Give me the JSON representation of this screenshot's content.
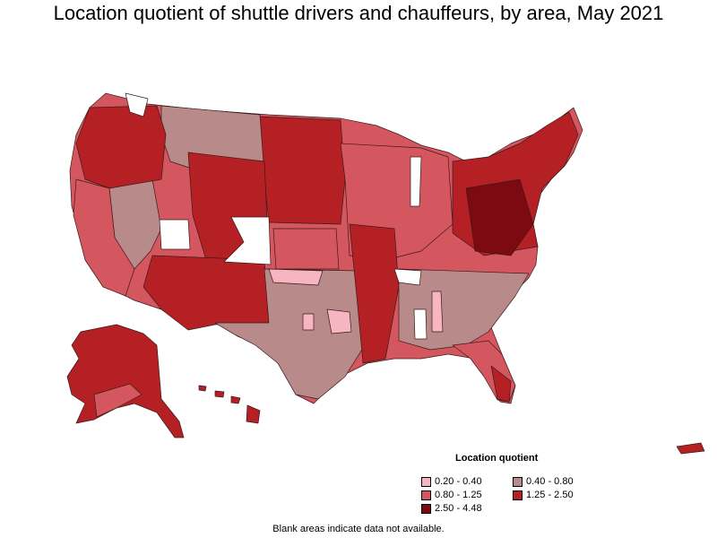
{
  "title": "Location quotient of shuttle drivers and chauffeurs, by area, May 2021",
  "legend": {
    "title": "Location quotient",
    "items": [
      {
        "label": "0.20 - 0.40",
        "color": "#f6b5c0"
      },
      {
        "label": "0.40 - 0.80",
        "color": "#b98a8a"
      },
      {
        "label": "0.80 - 1.25",
        "color": "#d4575f"
      },
      {
        "label": "1.25 - 2.50",
        "color": "#b52025"
      },
      {
        "label": "2.50 - 4.48",
        "color": "#7d0a10"
      }
    ]
  },
  "note": "Blank areas indicate data not available.",
  "colors": {
    "border": "#3a1a1a",
    "no_data": "#ffffff"
  }
}
